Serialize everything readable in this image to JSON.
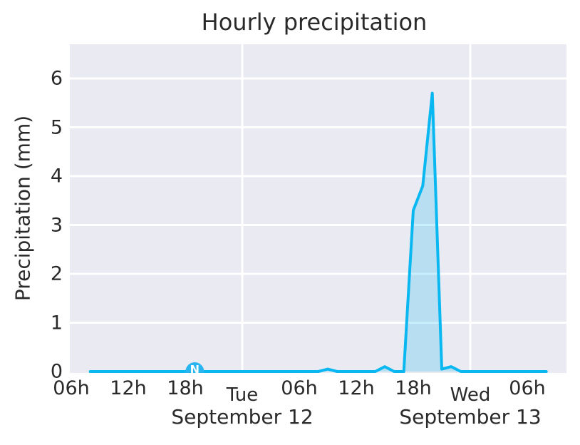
{
  "chart_data": {
    "type": "area",
    "title": "Hourly precipitation",
    "ylabel": "Precipitation (mm)",
    "xlabel": "",
    "grid": true,
    "legend": "none",
    "ylim": [
      0,
      6.7
    ],
    "y_ticks": [
      0,
      1,
      2,
      3,
      4,
      5,
      6
    ],
    "x_unit": "hours since Monday 00:00",
    "xlim_hours": [
      5.85,
      58.05
    ],
    "x": [
      8,
      9,
      10,
      11,
      12,
      13,
      14,
      15,
      16,
      17,
      18,
      19,
      20,
      21,
      22,
      23,
      24,
      25,
      26,
      27,
      28,
      29,
      30,
      31,
      32,
      33,
      34,
      35,
      36,
      37,
      38,
      39,
      40,
      41,
      42,
      43,
      44,
      45,
      46,
      47,
      48,
      49,
      50,
      51,
      52,
      53,
      54,
      55,
      56
    ],
    "values": [
      0,
      0,
      0,
      0,
      0,
      0,
      0,
      0,
      0,
      0,
      0,
      0,
      0,
      0,
      0,
      0,
      0,
      0,
      0,
      0,
      0,
      0,
      0,
      0,
      0,
      0.05,
      0,
      0,
      0,
      0,
      0,
      0.1,
      0,
      0,
      3.3,
      3.8,
      5.7,
      0.05,
      0.1,
      0,
      0,
      0,
      0,
      0,
      0,
      0,
      0,
      0,
      0
    ],
    "x_ticks": [
      {
        "hour": 6,
        "label": "06h",
        "major": false
      },
      {
        "hour": 12,
        "label": "12h",
        "major": false
      },
      {
        "hour": 18,
        "label": "18h",
        "major": false
      },
      {
        "hour": 24,
        "label": "Tue",
        "major": true
      },
      {
        "hour": 30,
        "label": "06h",
        "major": false
      },
      {
        "hour": 36,
        "label": "12h",
        "major": false
      },
      {
        "hour": 42,
        "label": "18h",
        "major": false
      },
      {
        "hour": 48,
        "label": "Wed",
        "major": true
      },
      {
        "hour": 54,
        "label": "06h",
        "major": false
      }
    ],
    "date_labels": [
      {
        "hour": 24,
        "label": "September 12"
      },
      {
        "hour": 48,
        "label": "September 13"
      }
    ],
    "marker": {
      "hour": 19,
      "value": 0,
      "label": "N"
    },
    "colors": {
      "line": "#0ab8f1",
      "fill": "rgba(10,184,241,0.22)",
      "plot_bg": "#eaeaf2",
      "grid": "#ffffff",
      "text": "#2a2a2a",
      "marker_bg": "#29b5f0",
      "marker_text": "#ffffff"
    }
  }
}
